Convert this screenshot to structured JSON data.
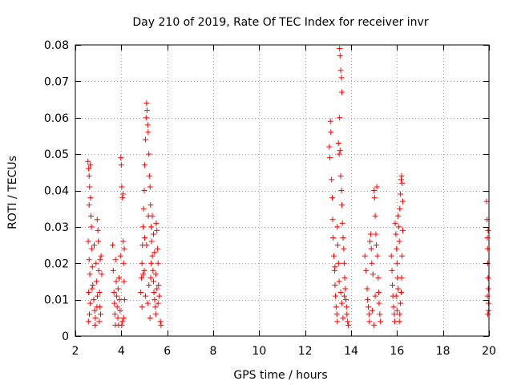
{
  "chart_data": {
    "type": "scatter",
    "title": "Day 210 of 2019, Rate Of TEC Index for receiver invr",
    "xlabel": "GPS time / hours",
    "ylabel": "ROTI / TECUs",
    "xlim": [
      2,
      20
    ],
    "ylim": [
      0,
      0.08
    ],
    "xticks": [
      2,
      4,
      6,
      8,
      10,
      12,
      14,
      16,
      18,
      20
    ],
    "yticks": [
      0,
      0.01,
      0.02,
      0.03,
      0.04,
      0.05,
      0.06,
      0.07,
      0.08
    ],
    "xtick_labels": [
      "2",
      "4",
      "6",
      "8",
      "10",
      "12",
      "14",
      "16",
      "18",
      "20"
    ],
    "ytick_labels": [
      "0",
      "0.01",
      "0.02",
      "0.03",
      "0.04",
      "0.05",
      "0.06",
      "0.07",
      "0.08"
    ],
    "grid": true,
    "marker": "+",
    "color": "#ff0000",
    "series": [
      {
        "name": "ROTI",
        "points": [
          [
            2.55,
            0.048
          ],
          [
            2.58,
            0.046
          ],
          [
            2.6,
            0.044
          ],
          [
            2.6,
            0.036
          ],
          [
            2.62,
            0.041
          ],
          [
            2.65,
            0.047
          ],
          [
            2.66,
            0.038
          ],
          [
            2.56,
            0.026
          ],
          [
            2.6,
            0.021
          ],
          [
            2.63,
            0.017
          ],
          [
            2.58,
            0.012
          ],
          [
            2.64,
            0.009
          ],
          [
            2.61,
            0.006
          ],
          [
            2.57,
            0.004
          ],
          [
            2.7,
            0.03
          ],
          [
            2.72,
            0.024
          ],
          [
            2.74,
            0.019
          ],
          [
            2.76,
            0.014
          ],
          [
            2.8,
            0.01
          ],
          [
            2.84,
            0.007
          ],
          [
            2.87,
            0.005
          ],
          [
            2.9,
            0.02
          ],
          [
            2.92,
            0.015
          ],
          [
            2.95,
            0.032
          ],
          [
            2.98,
            0.029
          ],
          [
            3.0,
            0.026
          ],
          [
            3.02,
            0.018
          ],
          [
            3.05,
            0.012
          ],
          [
            3.07,
            0.008
          ],
          [
            3.1,
            0.006
          ],
          [
            3.12,
            0.022
          ],
          [
            3.15,
            0.017
          ],
          [
            2.68,
            0.033
          ],
          [
            2.82,
            0.025
          ],
          [
            2.96,
            0.011
          ],
          [
            3.04,
            0.004
          ],
          [
            2.73,
            0.013
          ],
          [
            2.86,
            0.003
          ],
          [
            3.08,
            0.021
          ],
          [
            2.94,
            0.008
          ],
          [
            3.62,
            0.025
          ],
          [
            3.65,
            0.018
          ],
          [
            3.68,
            0.012
          ],
          [
            3.7,
            0.009
          ],
          [
            3.72,
            0.006
          ],
          [
            3.75,
            0.021
          ],
          [
            3.78,
            0.015
          ],
          [
            3.8,
            0.011
          ],
          [
            3.82,
            0.008
          ],
          [
            3.85,
            0.005
          ],
          [
            3.88,
            0.003
          ],
          [
            3.9,
            0.016
          ],
          [
            3.92,
            0.01
          ],
          [
            3.95,
            0.007
          ],
          [
            3.98,
            0.049
          ],
          [
            4.0,
            0.047
          ],
          [
            4.02,
            0.041
          ],
          [
            4.05,
            0.038
          ],
          [
            4.07,
            0.039
          ],
          [
            4.08,
            0.026
          ],
          [
            4.1,
            0.02
          ],
          [
            4.12,
            0.015
          ],
          [
            4.14,
            0.01
          ],
          [
            4.05,
            0.004
          ],
          [
            4.02,
            0.003
          ],
          [
            4.1,
            0.005
          ],
          [
            3.96,
            0.022
          ],
          [
            4.13,
            0.024
          ],
          [
            3.74,
            0.003
          ],
          [
            3.86,
            0.013
          ],
          [
            4.85,
            0.012
          ],
          [
            4.88,
            0.016
          ],
          [
            4.9,
            0.02
          ],
          [
            4.92,
            0.025
          ],
          [
            4.95,
            0.03
          ],
          [
            4.97,
            0.035
          ],
          [
            5.0,
            0.04
          ],
          [
            5.02,
            0.047
          ],
          [
            5.05,
            0.054
          ],
          [
            5.08,
            0.06
          ],
          [
            5.1,
            0.064
          ],
          [
            5.12,
            0.062
          ],
          [
            5.15,
            0.058
          ],
          [
            5.17,
            0.056
          ],
          [
            5.2,
            0.05
          ],
          [
            5.22,
            0.044
          ],
          [
            5.25,
            0.041
          ],
          [
            5.27,
            0.036
          ],
          [
            5.3,
            0.03
          ],
          [
            5.32,
            0.026
          ],
          [
            5.35,
            0.022
          ],
          [
            5.38,
            0.018
          ],
          [
            5.4,
            0.015
          ],
          [
            5.42,
            0.012
          ],
          [
            5.45,
            0.01
          ],
          [
            5.48,
            0.008
          ],
          [
            5.5,
            0.006
          ],
          [
            5.52,
            0.031
          ],
          [
            5.55,
            0.029
          ],
          [
            5.58,
            0.024
          ],
          [
            5.6,
            0.02
          ],
          [
            5.62,
            0.014
          ],
          [
            5.65,
            0.011
          ],
          [
            5.7,
            0.004
          ],
          [
            5.73,
            0.003
          ],
          [
            5.0,
            0.018
          ],
          [
            5.05,
            0.011
          ],
          [
            5.1,
            0.025
          ],
          [
            5.15,
            0.009
          ],
          [
            5.2,
            0.014
          ],
          [
            5.25,
            0.005
          ],
          [
            4.95,
            0.017
          ],
          [
            5.3,
            0.02
          ],
          [
            5.35,
            0.033
          ],
          [
            5.4,
            0.028
          ],
          [
            5.45,
            0.023
          ],
          [
            5.5,
            0.017
          ],
          [
            5.55,
            0.013
          ],
          [
            5.6,
            0.009
          ],
          [
            4.9,
            0.008
          ],
          [
            5.02,
            0.027
          ],
          [
            5.18,
            0.033
          ],
          [
            5.28,
            0.016
          ],
          [
            13.05,
            0.052
          ],
          [
            13.08,
            0.049
          ],
          [
            13.1,
            0.059
          ],
          [
            13.12,
            0.056
          ],
          [
            13.15,
            0.043
          ],
          [
            13.18,
            0.038
          ],
          [
            13.2,
            0.032
          ],
          [
            13.22,
            0.027
          ],
          [
            13.25,
            0.022
          ],
          [
            13.28,
            0.018
          ],
          [
            13.3,
            0.014
          ],
          [
            13.32,
            0.011
          ],
          [
            13.35,
            0.008
          ],
          [
            13.38,
            0.006
          ],
          [
            13.4,
            0.004
          ],
          [
            13.5,
            0.079
          ],
          [
            13.52,
            0.077
          ],
          [
            13.55,
            0.073
          ],
          [
            13.58,
            0.071
          ],
          [
            13.6,
            0.067
          ],
          [
            13.5,
            0.06
          ],
          [
            13.52,
            0.051
          ],
          [
            13.55,
            0.044
          ],
          [
            13.58,
            0.04
          ],
          [
            13.6,
            0.036
          ],
          [
            13.62,
            0.031
          ],
          [
            13.65,
            0.027
          ],
          [
            13.68,
            0.024
          ],
          [
            13.7,
            0.02
          ],
          [
            13.72,
            0.016
          ],
          [
            13.75,
            0.013
          ],
          [
            13.78,
            0.01
          ],
          [
            13.8,
            0.008
          ],
          [
            13.82,
            0.006
          ],
          [
            13.85,
            0.004
          ],
          [
            13.88,
            0.003
          ],
          [
            13.45,
            0.053
          ],
          [
            13.48,
            0.05
          ],
          [
            13.4,
            0.03
          ],
          [
            13.42,
            0.025
          ],
          [
            13.45,
            0.02
          ],
          [
            13.48,
            0.015
          ],
          [
            13.55,
            0.012
          ],
          [
            13.6,
            0.009
          ],
          [
            13.65,
            0.005
          ],
          [
            13.3,
            0.019
          ],
          [
            13.7,
            0.011
          ],
          [
            14.6,
            0.022
          ],
          [
            14.65,
            0.018
          ],
          [
            14.7,
            0.013
          ],
          [
            14.72,
            0.01
          ],
          [
            14.75,
            0.008
          ],
          [
            14.78,
            0.006
          ],
          [
            14.8,
            0.004
          ],
          [
            14.82,
            0.026
          ],
          [
            14.85,
            0.028
          ],
          [
            14.88,
            0.024
          ],
          [
            14.9,
            0.02
          ],
          [
            14.95,
            0.017
          ],
          [
            15.0,
            0.04
          ],
          [
            15.02,
            0.038
          ],
          [
            15.05,
            0.033
          ],
          [
            15.08,
            0.028
          ],
          [
            15.1,
            0.025
          ],
          [
            15.12,
            0.041
          ],
          [
            15.15,
            0.022
          ],
          [
            15.18,
            0.016
          ],
          [
            15.2,
            0.012
          ],
          [
            15.22,
            0.009
          ],
          [
            15.25,
            0.006
          ],
          [
            15.28,
            0.004
          ],
          [
            15.0,
            0.003
          ],
          [
            14.92,
            0.007
          ],
          [
            15.05,
            0.011
          ],
          [
            15.75,
            0.022
          ],
          [
            15.78,
            0.018
          ],
          [
            15.8,
            0.014
          ],
          [
            15.82,
            0.011
          ],
          [
            15.85,
            0.008
          ],
          [
            15.88,
            0.006
          ],
          [
            15.9,
            0.004
          ],
          [
            15.92,
            0.031
          ],
          [
            15.95,
            0.028
          ],
          [
            15.98,
            0.024
          ],
          [
            16.0,
            0.02
          ],
          [
            16.02,
            0.016
          ],
          [
            16.05,
            0.033
          ],
          [
            16.08,
            0.03
          ],
          [
            16.1,
            0.026
          ],
          [
            16.12,
            0.035
          ],
          [
            16.15,
            0.039
          ],
          [
            16.18,
            0.043
          ],
          [
            16.2,
            0.044
          ],
          [
            16.22,
            0.042
          ],
          [
            16.25,
            0.037
          ],
          [
            16.25,
            0.029
          ],
          [
            16.22,
            0.022
          ],
          [
            16.2,
            0.016
          ],
          [
            16.18,
            0.012
          ],
          [
            16.15,
            0.009
          ],
          [
            16.12,
            0.006
          ],
          [
            16.1,
            0.004
          ],
          [
            16.05,
            0.013
          ],
          [
            15.96,
            0.011
          ],
          [
            16.0,
            0.007
          ],
          [
            19.9,
            0.037
          ],
          [
            19.92,
            0.032
          ],
          [
            19.93,
            0.027
          ],
          [
            19.94,
            0.024
          ],
          [
            19.95,
            0.02
          ],
          [
            19.96,
            0.016
          ],
          [
            19.97,
            0.013
          ],
          [
            19.98,
            0.009
          ],
          [
            19.99,
            0.007
          ],
          [
            19.95,
            0.006
          ],
          [
            19.93,
            0.011
          ],
          [
            19.96,
            0.029
          ]
        ]
      }
    ]
  }
}
